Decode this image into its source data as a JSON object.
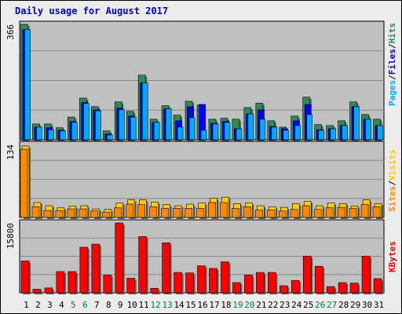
{
  "title": "Daily usage for August 2017",
  "colors": {
    "hits": "#2e8b57",
    "files": "#0000ff",
    "pages": "#00aaff",
    "visits": "#ffff00",
    "sites": "#ff8800",
    "kbytes": "#ff0000",
    "weekend_day": "#008040",
    "weekday_day": "#000000",
    "plot_bg": "#c0c0c0"
  },
  "legends": {
    "top": [
      {
        "label": "Pages",
        "color": "#00aaff"
      },
      {
        "label": "Files",
        "color": "#0000ff"
      },
      {
        "label": "Hits",
        "color": "#2e8b57"
      }
    ],
    "mid": [
      {
        "label": "Sites",
        "color": "#ff8800"
      },
      {
        "label": "Visits",
        "color": "#ffcc00"
      }
    ],
    "bot": [
      {
        "label": "KBytes",
        "color": "#ff0000"
      }
    ],
    "sep": "/"
  },
  "chart_data": [
    {
      "type": "bar",
      "panel": "hits-files-pages",
      "ymax_label": "366",
      "ylim": [
        0,
        366
      ],
      "categories": [
        "1",
        "2",
        "3",
        "4",
        "5",
        "6",
        "7",
        "8",
        "9",
        "10",
        "11",
        "12",
        "13",
        "14",
        "15",
        "16",
        "17",
        "18",
        "19",
        "20",
        "21",
        "22",
        "23",
        "24",
        "25",
        "26",
        "27",
        "28",
        "29",
        "30",
        "31"
      ],
      "weekend": [
        5,
        6,
        12,
        13,
        19,
        20,
        26,
        27
      ],
      "series": [
        {
          "name": "Hits",
          "values": [
            366,
            50,
            50,
            38,
            72,
            132,
            105,
            28,
            120,
            90,
            205,
            65,
            108,
            78,
            122,
            110,
            65,
            68,
            65,
            102,
            116,
            60,
            40,
            75,
            135,
            48,
            45,
            60,
            120,
            80,
            65
          ]
        },
        {
          "name": "Files",
          "values": [
            350,
            40,
            38,
            30,
            58,
            118,
            95,
            18,
            100,
            75,
            180,
            55,
            98,
            60,
            105,
            112,
            52,
            58,
            35,
            82,
            95,
            42,
            35,
            60,
            112,
            32,
            35,
            45,
            105,
            65,
            45
          ]
        },
        {
          "name": "Pages",
          "values": [
            350,
            40,
            32,
            28,
            55,
            115,
            92,
            15,
            95,
            72,
            180,
            55,
            98,
            40,
            70,
            30,
            50,
            55,
            35,
            82,
            65,
            40,
            30,
            45,
            80,
            30,
            35,
            45,
            105,
            65,
            45
          ]
        }
      ]
    },
    {
      "type": "bar",
      "panel": "visits-sites",
      "ymax_label": "134",
      "ylim": [
        0,
        134
      ],
      "categories": [
        "1",
        "2",
        "3",
        "4",
        "5",
        "6",
        "7",
        "8",
        "9",
        "10",
        "11",
        "12",
        "13",
        "14",
        "15",
        "16",
        "17",
        "18",
        "19",
        "20",
        "21",
        "22",
        "23",
        "24",
        "25",
        "26",
        "27",
        "28",
        "29",
        "30",
        "31"
      ],
      "series": [
        {
          "name": "Visits",
          "values": [
            134,
            28,
            22,
            18,
            21,
            22,
            16,
            15,
            27,
            33,
            33,
            29,
            24,
            22,
            25,
            27,
            36,
            38,
            26,
            27,
            22,
            20,
            19,
            26,
            30,
            22,
            27,
            26,
            21,
            33,
            26
          ]
        },
        {
          "name": "Sites",
          "values": [
            128,
            20,
            13,
            13,
            16,
            16,
            12,
            10,
            18,
            25,
            24,
            20,
            17,
            17,
            17,
            17,
            28,
            28,
            17,
            20,
            14,
            14,
            12,
            15,
            22,
            15,
            18,
            19,
            17,
            24,
            20
          ]
        }
      ]
    },
    {
      "type": "bar",
      "panel": "kbytes",
      "ymax_label": "15800",
      "ylim": [
        0,
        15800
      ],
      "categories": [
        "1",
        "2",
        "3",
        "4",
        "5",
        "6",
        "7",
        "8",
        "9",
        "10",
        "11",
        "12",
        "13",
        "14",
        "15",
        "16",
        "17",
        "18",
        "19",
        "20",
        "21",
        "22",
        "23",
        "24",
        "25",
        "26",
        "27",
        "28",
        "29",
        "30",
        "31"
      ],
      "series": [
        {
          "name": "KBytes",
          "values": [
            7200,
            800,
            1100,
            4800,
            4800,
            10300,
            11000,
            4000,
            15800,
            3300,
            12700,
            1000,
            11300,
            4600,
            4500,
            6100,
            5500,
            7000,
            2300,
            4000,
            4600,
            4600,
            1600,
            2800,
            8300,
            6000,
            1400,
            2300,
            2200,
            8300,
            3200
          ]
        }
      ]
    }
  ]
}
